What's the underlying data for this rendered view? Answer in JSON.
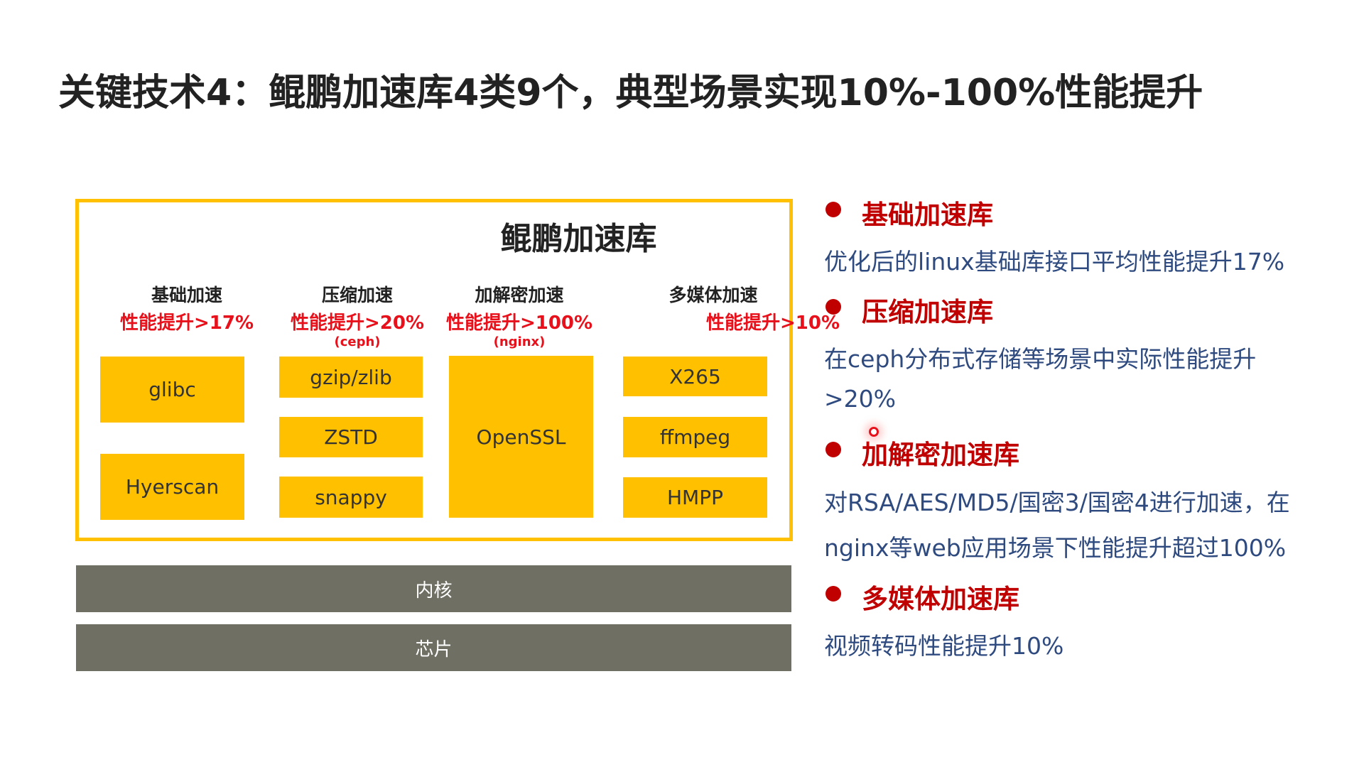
{
  "title": "关键技术4：鲲鹏加速库4类9个，典型场景实现10%-100%性能提升",
  "diagram": {
    "frame_title": "鲲鹏加速库",
    "columns": [
      {
        "header": "基础加速",
        "perf": "性能提升>17%",
        "note": "",
        "items": [
          "glibc",
          "Hyerscan"
        ]
      },
      {
        "header": "压缩加速",
        "perf": "性能提升>20%",
        "note": "(ceph)",
        "items": [
          "gzip/zlib",
          "ZSTD",
          "snappy"
        ]
      },
      {
        "header": "加解密加速",
        "perf": "性能提升>100%",
        "note": "(nginx)",
        "items": [
          "OpenSSL"
        ]
      },
      {
        "header": "多媒体加速",
        "perf": "性能提升>10%",
        "note": "",
        "items": [
          "X265",
          "ffmpeg",
          "HMPP"
        ]
      }
    ],
    "layers": [
      "内核",
      "芯片"
    ],
    "colors": {
      "accent": "#FFC000",
      "layer": "#6f6f63",
      "highlight": "#e8101a"
    }
  },
  "bullets": [
    {
      "heading": "基础加速库",
      "lines": [
        "优化后的linux基础库接口平均性能提升17%"
      ]
    },
    {
      "heading": "压缩加速库",
      "lines": [
        "在ceph分布式存储等场景中实际性能提升",
        ">20%"
      ]
    },
    {
      "heading": "加解密加速库",
      "lines": [
        "对RSA/AES/MD5/国密3/国密4进行加速，在",
        "nginx等web应用场景下性能提升超过100%"
      ]
    },
    {
      "heading": "多媒体加速库",
      "lines": [
        "视频转码性能提升10%"
      ]
    }
  ]
}
